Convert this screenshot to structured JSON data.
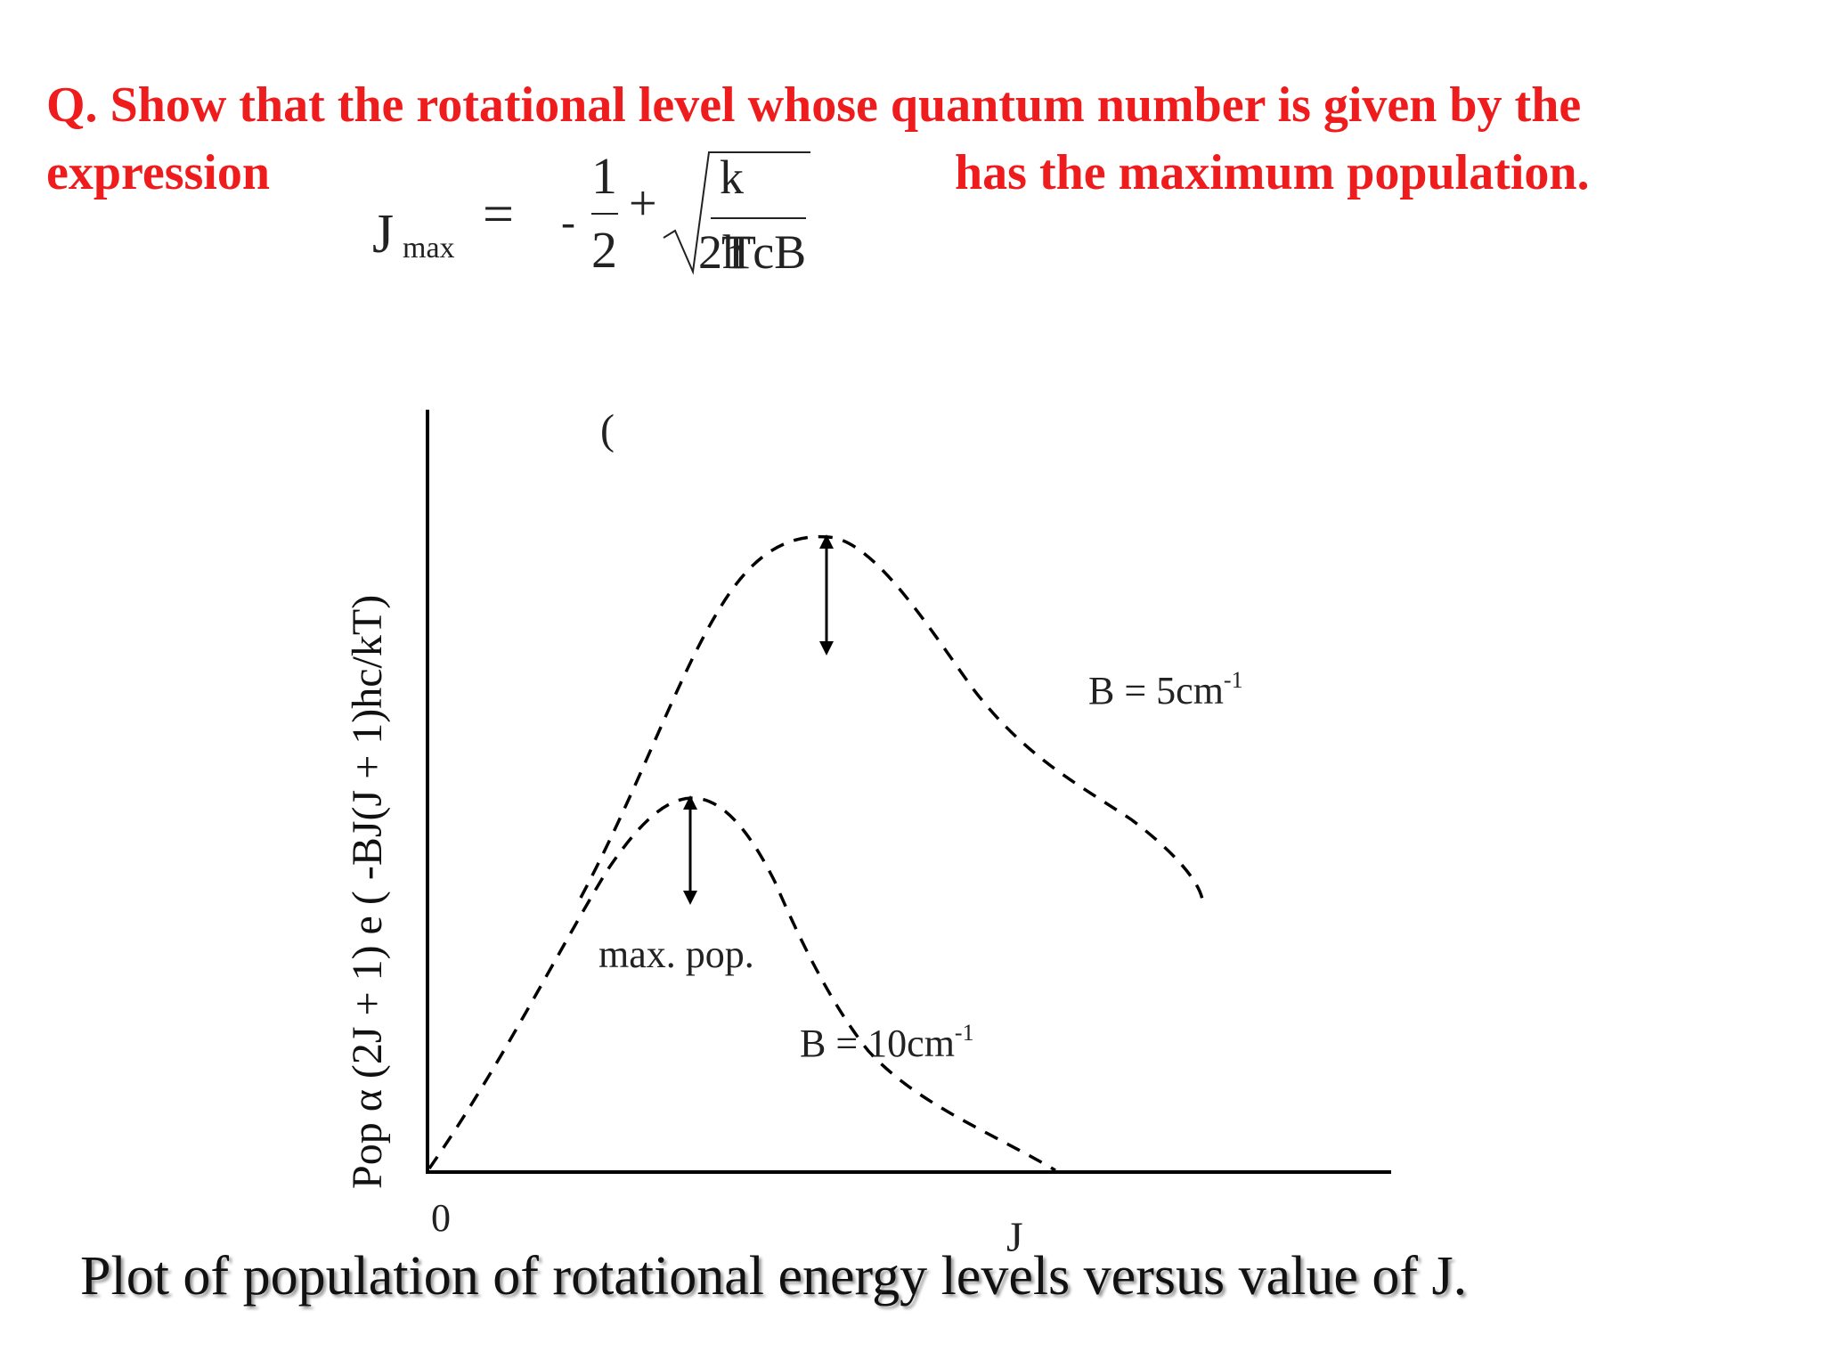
{
  "question": {
    "prefix": "Q.",
    "line1_text": "Show that the rotational level whose quantum number is given by the",
    "line2_left": "expression",
    "line2_right": "has the maximum population."
  },
  "formula": {
    "lhs": "J",
    "lhs_sub": "max",
    "equals": "=",
    "minus": "-",
    "frac_num": "1",
    "frac_den": "2",
    "plus": "+",
    "sqrt_num": "k",
    "sqrt_den_a": "2h",
    "sqrt_den_b": "TcB",
    "overlap_char": "T"
  },
  "diagram": {
    "y_axis_label": "Pop α (2J + 1) e ( -BJ(J + 1)hc/kT)",
    "x_origin_label": "0",
    "x_axis_label": "J",
    "stray_paren": "(",
    "annotation_max_pop": "max. pop.",
    "label_b5": "B = 5cm",
    "label_b5_sup": "-1",
    "label_b10": "B = 10cm",
    "label_b10_sup": "-1"
  },
  "caption": "Plot of population of rotational energy levels versus value of J."
}
